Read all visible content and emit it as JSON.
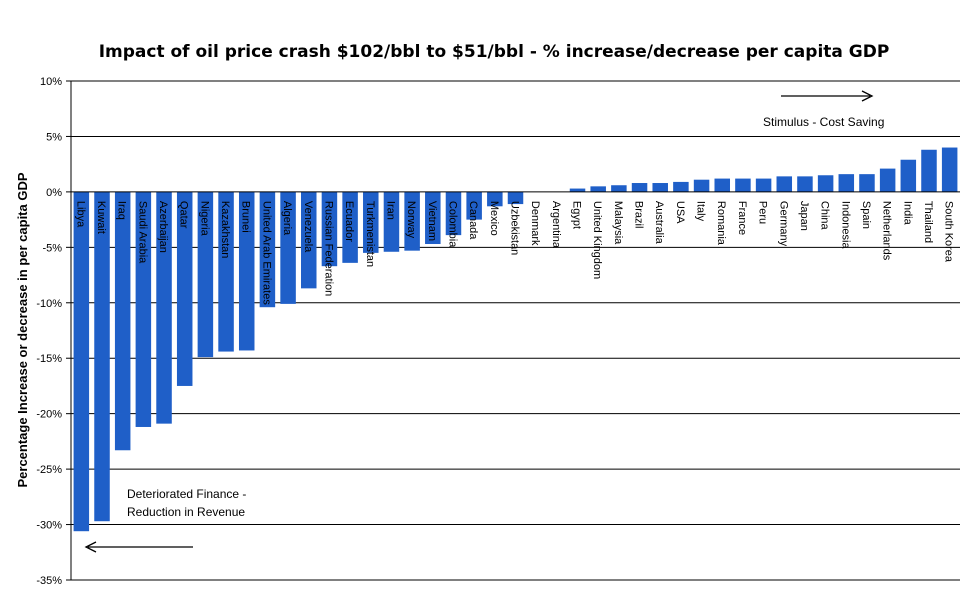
{
  "chart_data": {
    "type": "bar",
    "title": "Impact of oil price crash $102/bbl to  $51/bbl - % increase/decrease per capita GDP",
    "xlabel": "",
    "ylabel": "Percentage Increase or decrease in per capita GDP",
    "ylim": [
      -35,
      10
    ],
    "ytick_step": 5,
    "tick_suffix": "%",
    "grid": true,
    "bar_color": "#1F5FC8",
    "categories": [
      "Libya",
      "Kuwait",
      "Iraq",
      "Saudi Arabia",
      "Azerbaijan",
      "Qatar",
      "Nigeria",
      "Kazakhstan",
      "Brunei",
      "United Arab Emirates",
      "Algeria",
      "Venezuela",
      "Russian Federation",
      "Ecuador",
      "Turkmenistan",
      "Iran",
      "Norway",
      "Vietnam",
      "Colombia",
      "Canada",
      "Mexico",
      "Uzbekistan",
      "Denmark",
      "Argentina",
      "Egypt",
      "United Kingdom",
      "Malaysia",
      "Brazil",
      "Australia",
      "USA",
      "Italy",
      "Romania",
      "France",
      "Peru",
      "Germany",
      "Japan",
      "China",
      "Indonesia",
      "Spain",
      "Netherlands",
      "India",
      "Thailand",
      "South Korea"
    ],
    "values": [
      -30.6,
      -29.7,
      -23.3,
      -21.2,
      -20.9,
      -17.5,
      -14.9,
      -14.4,
      -14.3,
      -10.4,
      -10.1,
      -8.7,
      -6.7,
      -6.4,
      -5.5,
      -5.4,
      -5.3,
      -4.7,
      -3.9,
      -2.5,
      -1.3,
      -1.1,
      0.0,
      0.0,
      0.3,
      0.5,
      0.6,
      0.8,
      0.8,
      0.9,
      1.1,
      1.2,
      1.2,
      1.2,
      1.4,
      1.4,
      1.5,
      1.6,
      1.6,
      2.1,
      2.9,
      3.8,
      4.0
    ],
    "annotations": [
      {
        "text": "Stimulus - Cost Saving",
        "arrow": "right"
      },
      {
        "text": [
          "Deteriorated Finance -",
          "Reduction in Revenue"
        ],
        "arrow": "left"
      }
    ]
  }
}
